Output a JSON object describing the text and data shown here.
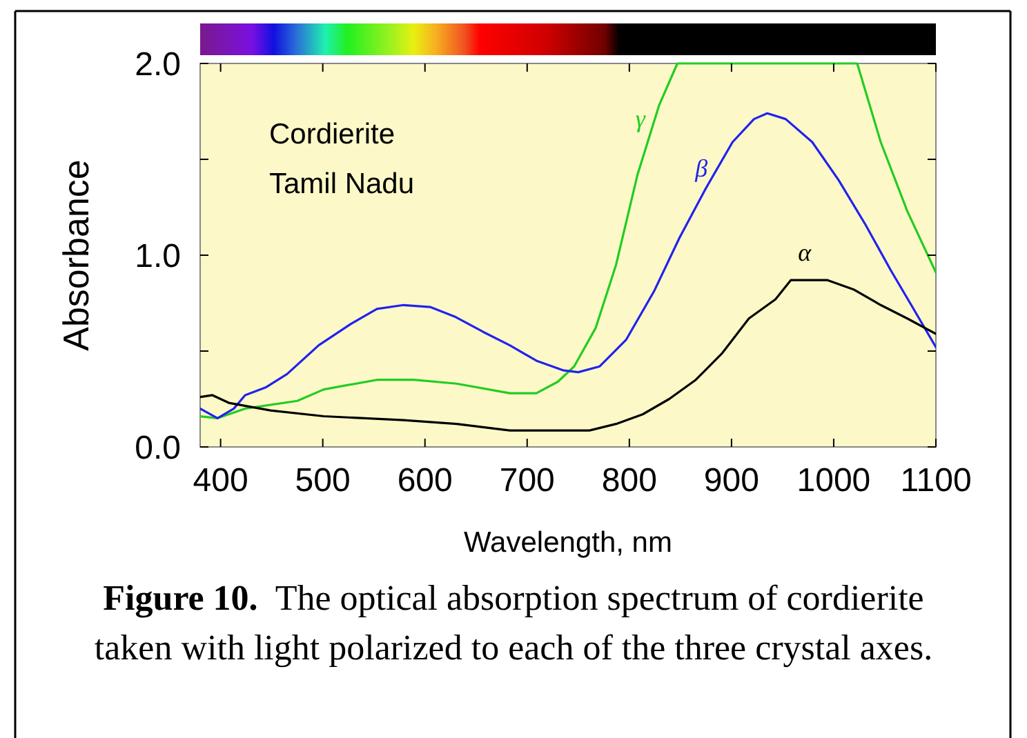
{
  "chart_data": {
    "type": "line",
    "title": "Cordierite",
    "subtitle": "Tamil Nadu",
    "xlabel": "Wavelength, nm",
    "ylabel": "Absorbance",
    "xlim": [
      380,
      1100
    ],
    "ylim": [
      0,
      2
    ],
    "xticks": [
      400,
      500,
      600,
      700,
      800,
      900,
      1000,
      1100
    ],
    "yticks": [
      {
        "value": 0,
        "label": "0.0"
      },
      {
        "value": 0.5,
        "label": null
      },
      {
        "value": 1,
        "label": "1.0"
      },
      {
        "value": 1.5,
        "label": null
      },
      {
        "value": 2,
        "label": "2.0"
      }
    ],
    "grid": false,
    "legend": false,
    "marker": "none",
    "line_style": "solid",
    "series": [
      {
        "name": "γ",
        "color": "#22cc22",
        "x": [
          380,
          397,
          424,
          475,
          501,
          553,
          589,
          631,
          683,
          709,
          730,
          746,
          767,
          787,
          808,
          829,
          847,
          1023,
          1046,
          1072,
          1100
        ],
        "values": [
          0.16,
          0.15,
          0.2,
          0.24,
          0.3,
          0.35,
          0.35,
          0.33,
          0.28,
          0.28,
          0.34,
          0.42,
          0.62,
          0.95,
          1.42,
          1.78,
          2.0,
          2.0,
          1.59,
          1.23,
          0.91
        ]
      },
      {
        "name": "β",
        "color": "#2222ee",
        "x": [
          380,
          397,
          413,
          424,
          444,
          465,
          496,
          527,
          553,
          579,
          605,
          629,
          657,
          683,
          709,
          735,
          750,
          771,
          797,
          824,
          849,
          875,
          901,
          922,
          935,
          953,
          979,
          1005,
          1031,
          1056,
          1077,
          1100
        ],
        "values": [
          0.2,
          0.15,
          0.2,
          0.27,
          0.31,
          0.38,
          0.53,
          0.64,
          0.72,
          0.74,
          0.73,
          0.68,
          0.6,
          0.53,
          0.45,
          0.4,
          0.39,
          0.42,
          0.56,
          0.81,
          1.09,
          1.35,
          1.59,
          1.71,
          1.74,
          1.71,
          1.59,
          1.39,
          1.16,
          0.92,
          0.73,
          0.52
        ]
      },
      {
        "name": "α",
        "color": "#000000",
        "x": [
          380,
          392,
          408,
          449,
          501,
          579,
          631,
          683,
          761,
          787,
          813,
          839,
          865,
          891,
          917,
          943,
          958,
          969,
          994,
          1020,
          1046,
          1072,
          1100
        ],
        "values": [
          0.26,
          0.27,
          0.23,
          0.19,
          0.16,
          0.14,
          0.12,
          0.086,
          0.086,
          0.12,
          0.17,
          0.25,
          0.35,
          0.49,
          0.67,
          0.77,
          0.87,
          0.87,
          0.87,
          0.82,
          0.74,
          0.67,
          0.59
        ]
      }
    ],
    "annotations": [
      "Figure 10.",
      "The optical absorption spectrum of cordierite taken with light polarized to each of the three crystal axes."
    ]
  }
}
